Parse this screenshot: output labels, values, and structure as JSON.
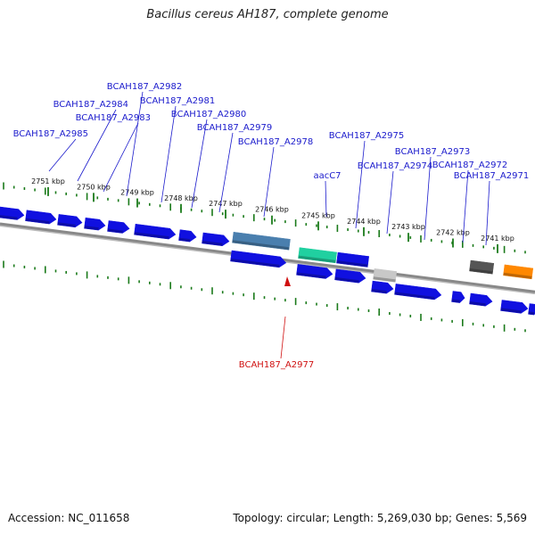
{
  "header": {
    "title": "Bacillus cereus AH187, complete genome"
  },
  "footer": {
    "accession": "Accession: NC_011658",
    "summary": "Topology: circular; Length: 5,269,030 bp; Genes: 5,569"
  },
  "colors": {
    "cds": "#1010e0",
    "cds_dark": "#0808a0",
    "backbone": "#888888",
    "tick": "#1a7a1a",
    "label": "#1a1acc",
    "highlight": "#d01010",
    "steelblue": "#4a7fae",
    "teal": "#20d0a0",
    "lightgray": "#c8c8c8",
    "darkgray": "#555555",
    "orange": "#ff8800"
  },
  "ticks": [
    {
      "label": "2751 kbp"
    },
    {
      "label": "2750 kbp"
    },
    {
      "label": "2749 kbp"
    },
    {
      "label": "2748 kbp"
    },
    {
      "label": "2747 kbp"
    },
    {
      "label": "2746 kbp"
    },
    {
      "label": "2745 kbp"
    },
    {
      "label": "2744 kbp"
    },
    {
      "label": "2743 kbp"
    },
    {
      "label": "2742 kbp"
    },
    {
      "label": "2741 kbp"
    }
  ],
  "genes": [
    {
      "label": "BCAH187_A2985"
    },
    {
      "label": "BCAH187_A2984"
    },
    {
      "label": "BCAH187_A2983"
    },
    {
      "label": "BCAH187_A2982"
    },
    {
      "label": "BCAH187_A2981"
    },
    {
      "label": "BCAH187_A2980"
    },
    {
      "label": "BCAH187_A2979"
    },
    {
      "label": "BCAH187_A2978"
    },
    {
      "label": "aacC7"
    },
    {
      "label": "BCAH187_A2975"
    },
    {
      "label": "BCAH187_A2974"
    },
    {
      "label": "BCAH187_A2973"
    },
    {
      "label": "BCAH187_A2972"
    },
    {
      "label": "BCAH187_A2971"
    },
    {
      "label": "BCAH187_A2977"
    }
  ]
}
